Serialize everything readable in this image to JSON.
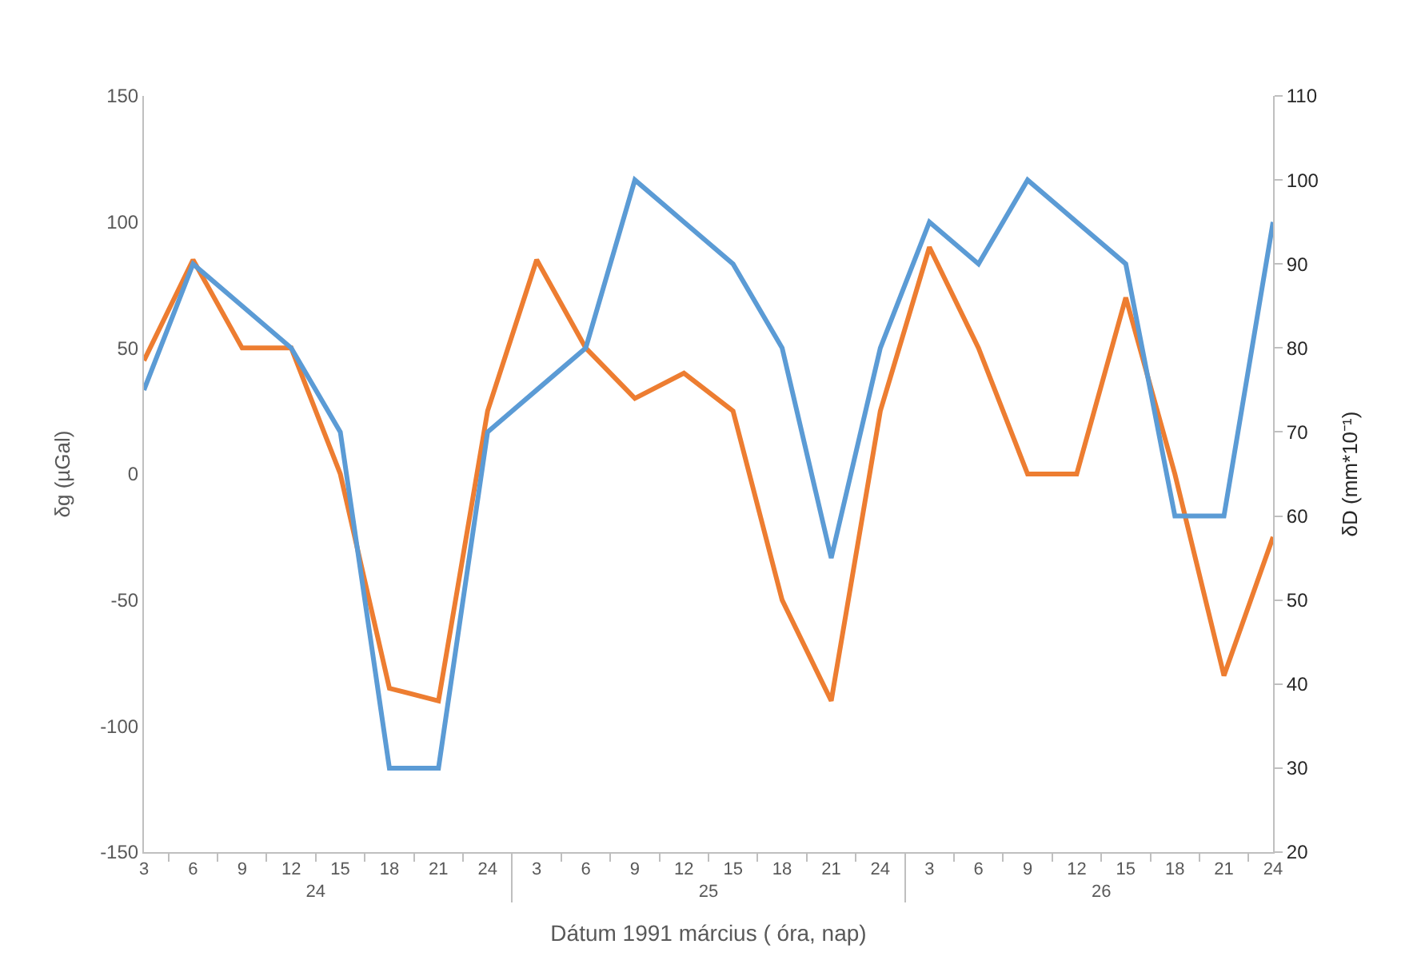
{
  "chart_data": {
    "type": "line",
    "xlabel": "Dátum 1991 március ( óra, nap)",
    "ylabel": "δg (µGal)",
    "y2label": "δD (mm*10⁻¹)",
    "categories": [
      "3",
      "6",
      "9",
      "12",
      "15",
      "18",
      "21",
      "24",
      "3",
      "6",
      "9",
      "12",
      "15",
      "18",
      "21",
      "24",
      "3",
      "6",
      "9",
      "12",
      "15",
      "18",
      "21",
      "24"
    ],
    "annotations": [
      "24",
      "25",
      "26"
    ],
    "series": [
      {
        "color": "#ed7d31",
        "values": [
          45,
          85,
          50,
          50,
          0,
          -85,
          -90,
          25,
          85,
          50,
          30,
          40,
          25,
          -50,
          -90,
          25,
          90,
          50,
          0,
          0,
          70,
          0,
          -80,
          -25
        ]
      },
      {
        "color": "#5b9bd5",
        "axis": "y2",
        "values": [
          75,
          90,
          85,
          80,
          70,
          30,
          30,
          70,
          75,
          80,
          100,
          95,
          90,
          80,
          55,
          80,
          95,
          90,
          100,
          95,
          90,
          60,
          60,
          95
        ]
      }
    ],
    "ylim": [
      -150,
      150
    ],
    "yticks": [
      -150,
      -100,
      -50,
      0,
      50,
      100,
      150
    ],
    "y2lim": [
      20,
      110
    ],
    "y2ticks": [
      20,
      30,
      40,
      50,
      60,
      70,
      80,
      90,
      100,
      110
    ]
  }
}
